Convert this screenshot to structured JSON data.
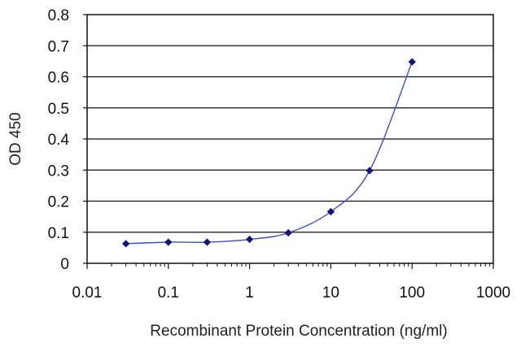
{
  "chart_data": {
    "type": "line",
    "title": "",
    "xlabel": "Recombinant Protein Concentration (ng/ml)",
    "ylabel": "OD 450",
    "x_scale": "log",
    "xlim": [
      0.01,
      1000
    ],
    "ylim": [
      0,
      0.8
    ],
    "x_ticks": [
      "0.01",
      "0.1",
      "1",
      "10",
      "100",
      "1000"
    ],
    "y_ticks": [
      "0",
      "0.1",
      "0.2",
      "0.3",
      "0.4",
      "0.5",
      "0.6",
      "0.7",
      "0.8"
    ],
    "grid": "horizontal",
    "series": [
      {
        "color": "#1a1a8c",
        "x": [
          0.03,
          0.1,
          0.3,
          1,
          3,
          10,
          30,
          100
        ],
        "y": [
          0.063,
          0.068,
          0.068,
          0.077,
          0.098,
          0.166,
          0.298,
          0.648
        ]
      }
    ],
    "colors": {
      "line": "#3a4fd0",
      "marker": "#12127a",
      "grid": "#111111",
      "plot_bg": "#ffffff"
    }
  }
}
